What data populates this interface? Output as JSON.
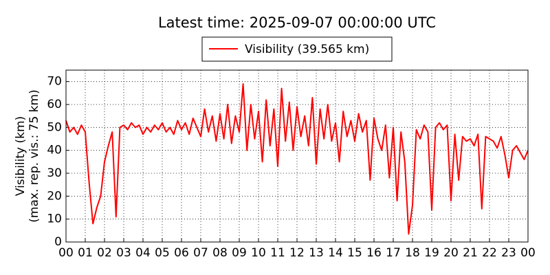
{
  "chart_data": {
    "type": "line",
    "title": "Latest time: 2025-09-07 00:00:00 UTC",
    "ylabel": [
      "Visibility (km)",
      "(max. rep. vis.: 75 km)"
    ],
    "legend": "upper center",
    "grid": true,
    "xlim": [
      0,
      24
    ],
    "ylim": [
      0,
      75
    ],
    "yticks": [
      0,
      10,
      20,
      30,
      40,
      50,
      60,
      70
    ],
    "xticks": [
      {
        "value": 0,
        "label": "00"
      },
      {
        "value": 1,
        "label": "01"
      },
      {
        "value": 2,
        "label": "02"
      },
      {
        "value": 3,
        "label": "03"
      },
      {
        "value": 4,
        "label": "04"
      },
      {
        "value": 5,
        "label": "05"
      },
      {
        "value": 6,
        "label": "06"
      },
      {
        "value": 7,
        "label": "07"
      },
      {
        "value": 8,
        "label": "08"
      },
      {
        "value": 9,
        "label": "09"
      },
      {
        "value": 10,
        "label": "10"
      },
      {
        "value": 11,
        "label": "11"
      },
      {
        "value": 12,
        "label": "12"
      },
      {
        "value": 13,
        "label": "13"
      },
      {
        "value": 14,
        "label": "14"
      },
      {
        "value": 15,
        "label": "15"
      },
      {
        "value": 16,
        "label": "16"
      },
      {
        "value": 17,
        "label": "17"
      },
      {
        "value": 18,
        "label": "18"
      },
      {
        "value": 19,
        "label": "19"
      },
      {
        "value": 20,
        "label": "20"
      },
      {
        "value": 21,
        "label": "21"
      },
      {
        "value": 22,
        "label": "22"
      },
      {
        "value": 23,
        "label": "23"
      },
      {
        "value": 24,
        "label": "00"
      }
    ],
    "x": [
      0,
      0.2,
      0.4,
      0.6,
      0.8,
      1,
      1.2,
      1.4,
      1.6,
      1.8,
      2,
      2.2,
      2.4,
      2.6,
      2.8,
      3,
      3.2,
      3.4,
      3.6,
      3.8,
      4,
      4.2,
      4.4,
      4.6,
      4.8,
      5,
      5.2,
      5.4,
      5.6,
      5.8,
      6,
      6.2,
      6.4,
      6.6,
      6.8,
      7,
      7.2,
      7.4,
      7.6,
      7.8,
      8,
      8.2,
      8.4,
      8.6,
      8.8,
      9,
      9.2,
      9.4,
      9.6,
      9.8,
      10,
      10.2,
      10.4,
      10.6,
      10.8,
      11,
      11.2,
      11.4,
      11.6,
      11.8,
      12,
      12.2,
      12.4,
      12.6,
      12.8,
      13,
      13.2,
      13.4,
      13.6,
      13.8,
      14,
      14.2,
      14.4,
      14.6,
      14.8,
      15,
      15.2,
      15.4,
      15.6,
      15.8,
      16,
      16.2,
      16.4,
      16.6,
      16.8,
      17,
      17.2,
      17.4,
      17.6,
      17.8,
      18,
      18.2,
      18.4,
      18.6,
      18.8,
      19,
      19.2,
      19.4,
      19.6,
      19.8,
      20,
      20.2,
      20.4,
      20.6,
      20.8,
      21,
      21.2,
      21.4,
      21.6,
      21.8,
      22,
      22.2,
      22.4,
      22.6,
      22.8,
      23,
      23.2,
      23.4,
      23.6,
      23.8,
      24
    ],
    "series": [
      {
        "name": "Visibility (39.565 km)",
        "color": "#ff0000",
        "values": [
          53,
          48,
          50,
          47,
          51,
          48,
          26,
          8,
          15,
          20,
          35,
          42,
          48,
          11,
          50,
          51,
          49,
          52,
          50,
          51,
          47,
          50,
          48,
          51,
          49,
          52,
          48,
          50,
          47,
          53,
          49,
          52,
          47,
          54,
          50,
          46,
          58,
          48,
          55,
          44,
          56,
          45,
          60,
          43,
          55,
          48,
          69,
          40,
          60,
          45,
          57,
          35,
          62,
          42,
          58,
          33,
          67,
          44,
          61,
          40,
          59,
          46,
          55,
          42,
          63,
          34,
          58,
          45,
          60,
          44,
          52,
          35,
          57,
          46,
          53,
          44,
          56,
          48,
          53,
          27,
          54,
          45,
          40,
          51,
          28,
          50,
          18,
          48,
          35,
          3.5,
          16,
          49,
          45,
          51,
          48,
          14,
          50,
          52,
          49,
          51,
          18,
          47,
          27,
          46,
          44,
          45,
          42,
          47,
          14.5,
          46,
          45,
          44,
          41,
          46,
          38,
          28,
          40,
          42,
          39,
          36,
          40
        ]
      }
    ]
  }
}
